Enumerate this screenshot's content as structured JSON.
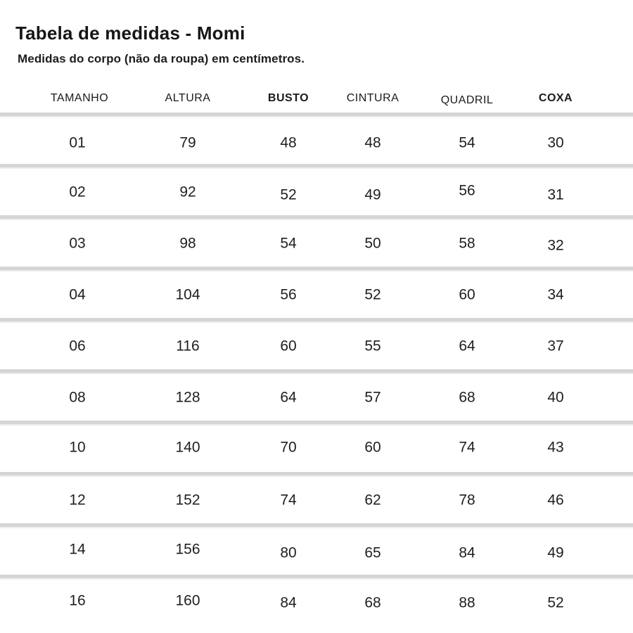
{
  "page": {
    "title": "Tabela de medidas - Momi",
    "subtitle": "Medidas do corpo (não da roupa) em centímetros."
  },
  "table": {
    "columns": [
      {
        "key": "tamanho",
        "label": "TAMANHO"
      },
      {
        "key": "altura",
        "label": "ALTURA"
      },
      {
        "key": "busto",
        "label": "BUSTO"
      },
      {
        "key": "cintura",
        "label": "CINTURA"
      },
      {
        "key": "quadril",
        "label": "QUADRIL"
      },
      {
        "key": "coxa",
        "label": "COXA"
      }
    ],
    "rows": [
      {
        "tamanho": "01",
        "altura": "79",
        "busto": "48",
        "cintura": "48",
        "quadril": "54",
        "coxa": "30"
      },
      {
        "tamanho": "02",
        "altura": "92",
        "busto": "52",
        "cintura": "49",
        "quadril": "56",
        "coxa": "31"
      },
      {
        "tamanho": "03",
        "altura": "98",
        "busto": "54",
        "cintura": "50",
        "quadril": "58",
        "coxa": "32"
      },
      {
        "tamanho": "04",
        "altura": "104",
        "busto": "56",
        "cintura": "52",
        "quadril": "60",
        "coxa": "34"
      },
      {
        "tamanho": "06",
        "altura": "116",
        "busto": "60",
        "cintura": "55",
        "quadril": "64",
        "coxa": "37"
      },
      {
        "tamanho": "08",
        "altura": "128",
        "busto": "64",
        "cintura": "57",
        "quadril": "68",
        "coxa": "40"
      },
      {
        "tamanho": "10",
        "altura": "140",
        "busto": "70",
        "cintura": "60",
        "quadril": "74",
        "coxa": "43"
      },
      {
        "tamanho": "12",
        "altura": "152",
        "busto": "74",
        "cintura": "62",
        "quadril": "78",
        "coxa": "46"
      },
      {
        "tamanho": "14",
        "altura": "156",
        "busto": "80",
        "cintura": "65",
        "quadril": "84",
        "coxa": "49"
      },
      {
        "tamanho": "16",
        "altura": "160",
        "busto": "84",
        "cintura": "68",
        "quadril": "88",
        "coxa": "52"
      }
    ]
  },
  "chart_data": {
    "type": "table",
    "title": "Tabela de medidas - Momi",
    "subtitle": "Medidas do corpo (não da roupa) em centímetros.",
    "columns": [
      "TAMANHO",
      "ALTURA",
      "BUSTO",
      "CINTURA",
      "QUADRIL",
      "COXA"
    ],
    "rows": [
      [
        "01",
        79,
        48,
        48,
        54,
        30
      ],
      [
        "02",
        92,
        52,
        49,
        56,
        31
      ],
      [
        "03",
        98,
        54,
        50,
        58,
        32
      ],
      [
        "04",
        104,
        56,
        52,
        60,
        34
      ],
      [
        "06",
        116,
        60,
        55,
        64,
        37
      ],
      [
        "08",
        128,
        64,
        57,
        68,
        40
      ],
      [
        "10",
        140,
        70,
        60,
        74,
        43
      ],
      [
        "12",
        152,
        74,
        62,
        78,
        46
      ],
      [
        "14",
        156,
        80,
        65,
        84,
        49
      ],
      [
        "16",
        160,
        84,
        68,
        88,
        52
      ]
    ]
  },
  "colors": {
    "background": "#ffffff",
    "text": "#1d1d1d",
    "divider": "#d5d5d5"
  }
}
